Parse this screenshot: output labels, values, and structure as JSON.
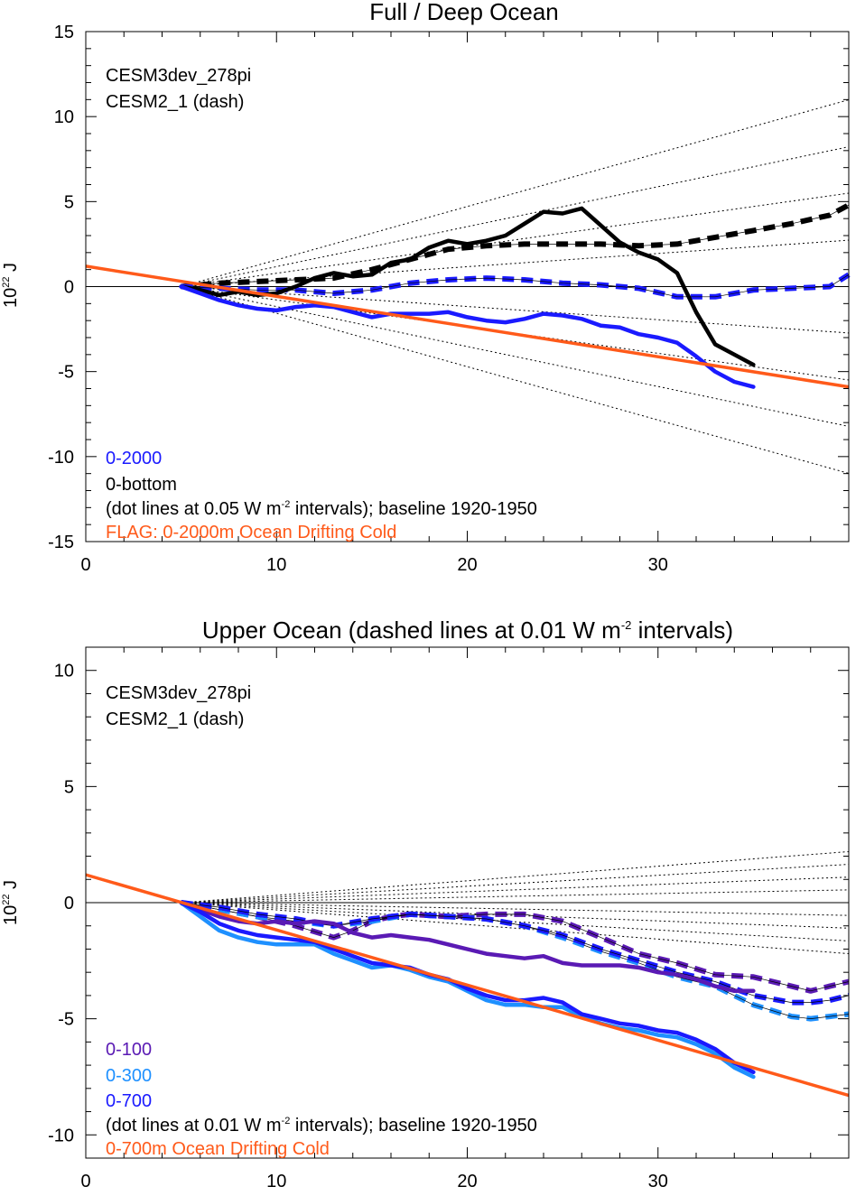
{
  "chart_data": [
    {
      "type": "line",
      "title": "Full / Deep Ocean",
      "ylabel_base": "10",
      "ylabel_exp": "22",
      "ylabel_unit": " J",
      "xlim": [
        0,
        40
      ],
      "ylim": [
        -15,
        15
      ],
      "xticks": [
        0,
        10,
        20,
        30
      ],
      "xtick_labels": [
        "0",
        "10",
        "20",
        "30"
      ],
      "yticks": [
        -15,
        -10,
        -5,
        0,
        5,
        10,
        15
      ],
      "ytick_labels": [
        "-15",
        "-10",
        "-5",
        "0",
        "5",
        "10",
        "15"
      ],
      "run_label": "CESM3dev_278pi",
      "dash_label": "CESM2_1 (dash)",
      "legend": [
        {
          "text": "0-2000",
          "color": "#1a1aff"
        },
        {
          "text": "0-bottom",
          "color": "#000000"
        }
      ],
      "note_pre": "(dot lines at 0.05 W m",
      "note_exp": "-2",
      "note_post": " intervals); baseline 1920-1950",
      "flag_text": "FLAG: 0-2000m Ocean Drifting Cold",
      "flag_color": "#ff5a1a",
      "reference_slopes": [
        0.314,
        0.235,
        0.157,
        0.078,
        -0.078,
        -0.157,
        -0.235,
        -0.314
      ],
      "reference_origin_x": 5,
      "trend_line": {
        "x": [
          0,
          40
        ],
        "y": [
          1.2,
          -5.9
        ],
        "color": "#ff5a1a"
      },
      "series": [
        {
          "color": "#000000",
          "style": "solid",
          "x": [
            5,
            6,
            7,
            8,
            9,
            10,
            11,
            12,
            13,
            14,
            15,
            16,
            17,
            18,
            19,
            20,
            21,
            22,
            23,
            24,
            25,
            26,
            27,
            28,
            29,
            30,
            31,
            32,
            33,
            34,
            35
          ],
          "y": [
            0,
            -0.2,
            -0.5,
            -0.3,
            -0.5,
            -0.4,
            0,
            0.5,
            0.8,
            0.6,
            0.7,
            1.4,
            1.6,
            2.3,
            2.7,
            2.5,
            2.7,
            3.0,
            3.7,
            4.4,
            4.3,
            4.6,
            3.6,
            2.6,
            2.0,
            1.6,
            0.8,
            -1.5,
            -3.4,
            -4.0,
            -4.6
          ]
        },
        {
          "color": "#000000",
          "style": "dash",
          "x": [
            5,
            7,
            9,
            11,
            13,
            15,
            17,
            19,
            21,
            23,
            25,
            27,
            29,
            31,
            33,
            35,
            37,
            39,
            40
          ],
          "y": [
            0,
            0.2,
            0.3,
            0.4,
            0.5,
            1.0,
            1.6,
            2.2,
            2.4,
            2.5,
            2.5,
            2.5,
            2.4,
            2.5,
            2.9,
            3.3,
            3.7,
            4.2,
            4.8
          ]
        },
        {
          "color": "#1a1aff",
          "style": "solid",
          "x": [
            5,
            6,
            7,
            8,
            9,
            10,
            11,
            12,
            13,
            14,
            15,
            16,
            17,
            18,
            19,
            20,
            21,
            22,
            23,
            24,
            25,
            26,
            27,
            28,
            29,
            30,
            31,
            32,
            33,
            34,
            35
          ],
          "y": [
            0,
            -0.4,
            -0.8,
            -1.1,
            -1.3,
            -1.4,
            -1.2,
            -1.1,
            -1.2,
            -1.5,
            -1.8,
            -1.6,
            -1.6,
            -1.6,
            -1.5,
            -1.8,
            -2.0,
            -2.1,
            -1.9,
            -1.6,
            -1.7,
            -1.9,
            -2.3,
            -2.4,
            -2.8,
            -3.0,
            -3.3,
            -4.1,
            -5.0,
            -5.6,
            -5.9
          ]
        },
        {
          "color": "#1a1aff",
          "style": "dash",
          "x": [
            5,
            7,
            9,
            11,
            13,
            15,
            17,
            19,
            21,
            23,
            25,
            27,
            29,
            31,
            33,
            35,
            37,
            39,
            40
          ],
          "y": [
            0,
            -0.1,
            -0.2,
            -0.2,
            -0.4,
            -0.2,
            0.2,
            0.4,
            0.5,
            0.4,
            0.2,
            0.1,
            -0.1,
            -0.6,
            -0.6,
            -0.2,
            -0.1,
            0,
            0.7
          ]
        }
      ]
    },
    {
      "type": "line",
      "title_pre": "Upper Ocean (dashed lines at 0.01 W m",
      "title_exp": "-2",
      "title_post": " intervals)",
      "ylabel_base": "10",
      "ylabel_exp": "22",
      "ylabel_unit": " J",
      "xlim": [
        0,
        40
      ],
      "ylim": [
        -11,
        11
      ],
      "xticks": [
        0,
        10,
        20,
        30
      ],
      "xtick_labels": [
        "0",
        "10",
        "20",
        "30"
      ],
      "yticks": [
        -10,
        -5,
        0,
        5,
        10
      ],
      "ytick_labels": [
        "-10",
        "-5",
        "0",
        "5",
        "10"
      ],
      "run_label": "CESM3dev_278pi",
      "dash_label": "CESM2_1 (dash)",
      "legend": [
        {
          "text": "0-100",
          "color": "#5a1ab4"
        },
        {
          "text": "0-300",
          "color": "#1e90ff"
        },
        {
          "text": "0-700",
          "color": "#1a1aff"
        }
      ],
      "note_pre": "(dot lines at 0.01 W m",
      "note_exp": "-2",
      "note_post": " intervals); baseline 1920-1950",
      "flag_text": "0-700m Ocean Drifting Cold",
      "flag_color": "#ff5a1a",
      "reference_slopes": [
        0.0628,
        0.0471,
        0.0314,
        0.0157,
        -0.0157,
        -0.0314,
        -0.0471,
        -0.0628
      ],
      "reference_origin_x": 5,
      "trend_line": {
        "x": [
          0,
          40
        ],
        "y": [
          1.2,
          -8.3
        ],
        "color": "#ff5a1a"
      },
      "series": [
        {
          "color": "#5a1ab4",
          "style": "solid",
          "x": [
            5,
            6,
            7,
            8,
            9,
            10,
            11,
            12,
            13,
            14,
            15,
            16,
            17,
            18,
            19,
            20,
            21,
            22,
            23,
            24,
            25,
            26,
            27,
            28,
            29,
            30,
            31,
            32,
            33,
            34,
            35
          ],
          "y": [
            0,
            -0.3,
            -0.6,
            -0.8,
            -0.9,
            -0.8,
            -0.9,
            -0.8,
            -0.9,
            -1.3,
            -1.5,
            -1.4,
            -1.5,
            -1.6,
            -1.8,
            -2.0,
            -2.2,
            -2.3,
            -2.4,
            -2.3,
            -2.6,
            -2.7,
            -2.7,
            -2.7,
            -2.8,
            -3.0,
            -3.1,
            -3.3,
            -3.6,
            -3.8,
            -3.8
          ]
        },
        {
          "color": "#5a1ab4",
          "style": "dash",
          "x": [
            5,
            7,
            9,
            11,
            13,
            14,
            15,
            16,
            17,
            19,
            21,
            23,
            25,
            27,
            29,
            31,
            33,
            35,
            37,
            38,
            39,
            40
          ],
          "y": [
            0,
            -0.3,
            -0.6,
            -1.0,
            -1.5,
            -1.2,
            -0.8,
            -0.6,
            -0.5,
            -0.6,
            -0.5,
            -0.5,
            -0.8,
            -1.5,
            -2.2,
            -2.6,
            -3.1,
            -3.2,
            -3.6,
            -3.8,
            -3.6,
            -3.4
          ]
        },
        {
          "color": "#1e90ff",
          "style": "solid",
          "x": [
            5,
            6,
            7,
            8,
            9,
            10,
            11,
            12,
            13,
            14,
            15,
            16,
            17,
            18,
            19,
            20,
            21,
            22,
            23,
            24,
            25,
            26,
            27,
            28,
            29,
            30,
            31,
            32,
            33,
            34,
            35
          ],
          "y": [
            0,
            -0.6,
            -1.2,
            -1.5,
            -1.7,
            -1.8,
            -1.8,
            -1.8,
            -2.2,
            -2.5,
            -2.8,
            -2.7,
            -2.9,
            -3.2,
            -3.4,
            -3.8,
            -4.2,
            -4.4,
            -4.4,
            -4.5,
            -4.5,
            -4.9,
            -5.2,
            -5.4,
            -5.5,
            -5.7,
            -5.8,
            -6.1,
            -6.5,
            -7.1,
            -7.5
          ]
        },
        {
          "color": "#1e90ff",
          "style": "dash",
          "x": [
            5,
            7,
            9,
            11,
            13,
            15,
            17,
            19,
            21,
            23,
            25,
            27,
            29,
            31,
            33,
            35,
            37,
            38,
            39,
            40
          ],
          "y": [
            0,
            -0.3,
            -0.6,
            -0.8,
            -1.0,
            -0.8,
            -0.5,
            -0.6,
            -0.7,
            -1.0,
            -1.5,
            -2.1,
            -2.6,
            -3.2,
            -3.6,
            -4.4,
            -4.9,
            -5.0,
            -4.9,
            -4.8
          ]
        },
        {
          "color": "#1a1aff",
          "style": "solid",
          "x": [
            5,
            6,
            7,
            8,
            9,
            10,
            11,
            12,
            13,
            14,
            15,
            16,
            17,
            18,
            19,
            20,
            21,
            22,
            23,
            24,
            25,
            26,
            27,
            28,
            29,
            30,
            31,
            32,
            33,
            34,
            35
          ],
          "y": [
            0,
            -0.4,
            -0.9,
            -1.2,
            -1.4,
            -1.5,
            -1.6,
            -1.7,
            -2.0,
            -2.3,
            -2.6,
            -2.7,
            -2.8,
            -3.1,
            -3.3,
            -3.7,
            -4.0,
            -4.2,
            -4.2,
            -4.1,
            -4.3,
            -4.8,
            -5.0,
            -5.2,
            -5.3,
            -5.5,
            -5.6,
            -5.9,
            -6.3,
            -6.9,
            -7.3
          ]
        },
        {
          "color": "#1a1aff",
          "style": "dash",
          "x": [
            5,
            7,
            9,
            11,
            13,
            15,
            17,
            19,
            21,
            23,
            25,
            27,
            29,
            31,
            33,
            35,
            37,
            38,
            39,
            40
          ],
          "y": [
            0,
            -0.2,
            -0.5,
            -0.7,
            -1.0,
            -0.7,
            -0.5,
            -0.6,
            -0.7,
            -1.0,
            -1.4,
            -2.0,
            -2.5,
            -3.0,
            -3.4,
            -4.0,
            -4.3,
            -4.3,
            -4.2,
            -4.0
          ]
        }
      ]
    }
  ]
}
